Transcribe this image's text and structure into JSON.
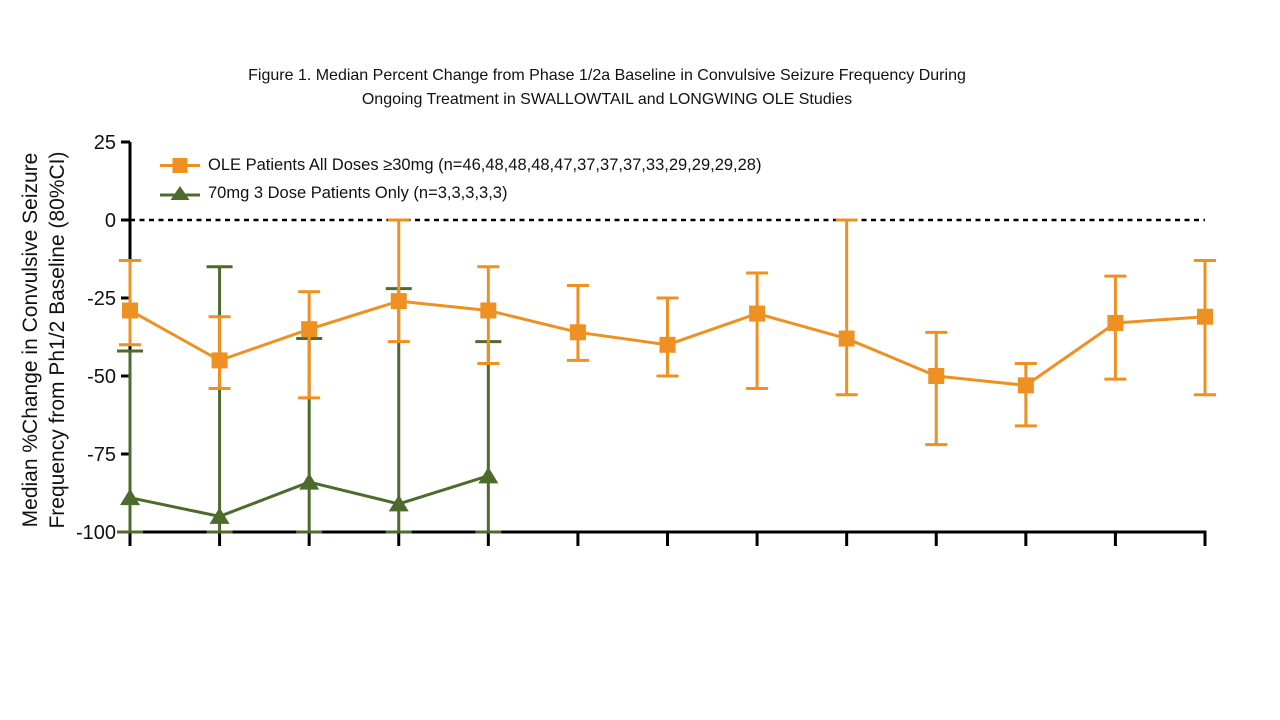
{
  "figure": {
    "title_line1": "Figure 1. Median Percent Change from Phase 1/2a Baseline in Convulsive Seizure Frequency During",
    "title_line2": "Ongoing Treatment in SWALLOWTAIL and LONGWING OLE Studies"
  },
  "y_axis": {
    "label_line1": "Median %Change in Convulsive Seizure",
    "label_line2": "Frequency from Ph1/2 Baseline (80%CI)",
    "ticks": [
      25,
      0,
      -25,
      -50,
      -75,
      -100
    ],
    "max": 25,
    "min": -100
  },
  "chart_data": {
    "type": "line",
    "title": "Figure 1. Median Percent Change from Phase 1/2a Baseline in Convulsive Seizure Frequency During Ongoing Treatment in SWALLOWTAIL and LONGWING OLE Studies",
    "ylabel": "Median %Change in Convulsive Seizure Frequency from Ph1/2 Baseline (80%CI)",
    "ylim": [
      -100,
      25
    ],
    "baseline": 0,
    "grid": false,
    "legend_position": "top-left",
    "x_tick_count": 13,
    "x_tick_labels": [],
    "series": [
      {
        "name": "OLE Patients All Doses ≥30mg (n=46,48,48,48,47,37,37,37,33,29,29,29,28)",
        "marker": "square",
        "color": "#EE9122",
        "values": [
          -29,
          -45,
          -35,
          -26,
          -29,
          -36,
          -40,
          -30,
          -38,
          -50,
          -53,
          -33,
          -31
        ],
        "ci_high": [
          -13,
          -31,
          -23,
          0,
          -15,
          -21,
          -25,
          -17,
          0,
          -36,
          -46,
          -18,
          -13
        ],
        "ci_low": [
          -40,
          -54,
          -57,
          -39,
          -46,
          -45,
          -50,
          -54,
          -56,
          -72,
          -66,
          -51,
          -56
        ]
      },
      {
        "name": "70mg 3 Dose Patients Only (n=3,3,3,3,3)",
        "marker": "triangle",
        "color": "#4C6B2D",
        "values": [
          -89,
          -95,
          -84,
          -91,
          -82
        ],
        "ci_high": [
          -42,
          -15,
          -38,
          -22,
          -39
        ],
        "ci_low": [
          -100,
          -100,
          -100,
          -100,
          -100
        ]
      }
    ]
  }
}
